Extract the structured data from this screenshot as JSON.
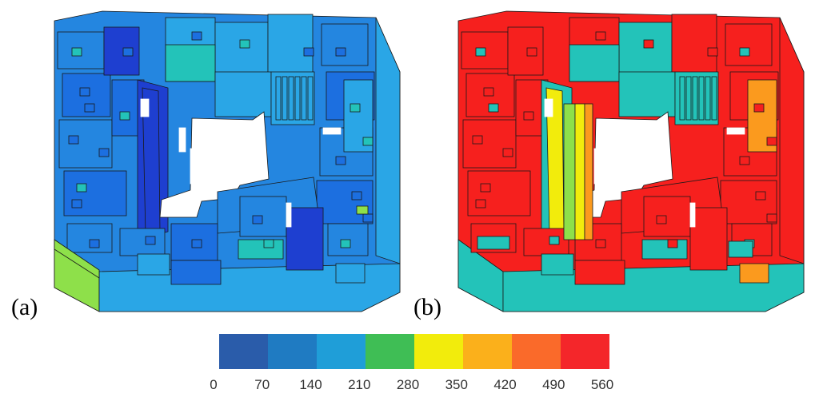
{
  "panels": [
    {
      "label": "(a)",
      "scheme": "low"
    },
    {
      "label": "(b)",
      "scheme": "high"
    }
  ],
  "legend": {
    "colors": [
      "#2a5caa",
      "#1f7bc2",
      "#1f9ed8",
      "#3fbe55",
      "#f2ec0c",
      "#fbb01b",
      "#fa6a2a",
      "#f4262a"
    ],
    "ticks": [
      "0",
      "70",
      "140",
      "210",
      "280",
      "350",
      "420",
      "490",
      "560"
    ]
  },
  "structure_colors": {
    "deep": "#1e3fd0",
    "mid": "#1c6fe0",
    "base": "#2486e0",
    "light": "#2aa6e6",
    "teal": "#23c3b9",
    "green": "#8ee04a",
    "yellow": "#f2ec0c",
    "orange": "#fb9a1e",
    "red": "#f6201e",
    "hole": "#ffffff",
    "edge": "#1a1a1a"
  }
}
